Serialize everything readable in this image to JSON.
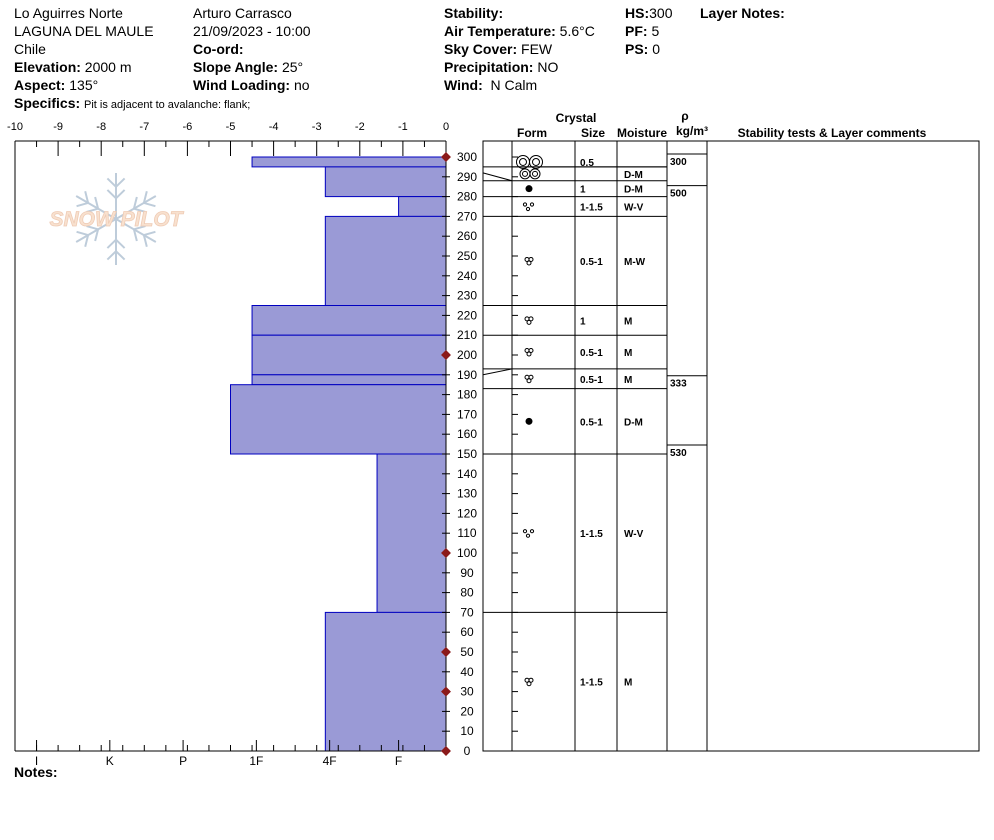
{
  "header": {
    "location": "Lo Aguirres Norte",
    "region": "LAGUNA DEL MAULE",
    "country": "Chile",
    "elevation_label": "Elevation:",
    "elevation": "2000 m",
    "aspect_label": "Aspect:",
    "aspect": "135°",
    "specifics_label": "Specifics:",
    "specifics": "Pit is adjacent to avalanche: flank;",
    "observer": "Arturo Carrasco",
    "datetime": "21/09/2023 - 10:00",
    "coord_label": "Co-ord:",
    "slope_label": "Slope Angle:",
    "slope": "25°",
    "wind_loading_label": "Wind Loading:",
    "wind_loading": "no",
    "stability_label": "Stability:",
    "air_temp_label": "Air Temperature:",
    "air_temp": "5.6°C",
    "sky_label": "Sky Cover:",
    "sky": "FEW",
    "precip_label": "Precipitation:",
    "precip": "NO",
    "wind_label": "Wind:",
    "wind": "N Calm",
    "hs_label": "HS:",
    "hs": "300",
    "pf_label": "PF:",
    "pf": "5",
    "ps_label": "PS:",
    "ps": "0",
    "layer_notes_label": "Layer Notes:"
  },
  "notes_label": "Notes:",
  "logo_text": "SNOW PILOT",
  "colors": {
    "bar_fill": "#9a9ad6",
    "bar_edge": "#0000c0",
    "marker": "#8b1a1a"
  },
  "chart_data": {
    "type": "bar",
    "title": "",
    "x_top_ticks": [
      "-10",
      "-9",
      "-8",
      "-7",
      "-6",
      "-5",
      "-4",
      "-3",
      "-2",
      "-1",
      "0"
    ],
    "x_bottom_labels": [
      "I",
      "K",
      "P",
      "1F",
      "4F",
      "F"
    ],
    "y_ticks": [
      "0",
      "10",
      "20",
      "30",
      "40",
      "50",
      "60",
      "70",
      "80",
      "90",
      "100",
      "110",
      "120",
      "130",
      "140",
      "150",
      "160",
      "170",
      "180",
      "190",
      "200",
      "210",
      "220",
      "230",
      "240",
      "250",
      "260",
      "270",
      "280",
      "290",
      "300"
    ],
    "ylim": [
      0,
      300
    ],
    "hardness_profile": [
      {
        "top": 300,
        "bottom": 295,
        "value": -4.5
      },
      {
        "top": 295,
        "bottom": 280,
        "value": -2.8
      },
      {
        "top": 280,
        "bottom": 270,
        "value": -1.1
      },
      {
        "top": 270,
        "bottom": 225,
        "value": -2.8
      },
      {
        "top": 225,
        "bottom": 210,
        "value": -4.5
      },
      {
        "top": 210,
        "bottom": 190,
        "value": -4.5
      },
      {
        "top": 190,
        "bottom": 185,
        "value": -4.5
      },
      {
        "top": 185,
        "bottom": 150,
        "value": -5.0
      },
      {
        "top": 150,
        "bottom": 70,
        "value": -1.6
      },
      {
        "top": 70,
        "bottom": 0,
        "value": -2.8
      }
    ],
    "markers": [
      300,
      200,
      100,
      50,
      30,
      0
    ],
    "table_headers": {
      "crystal": "Crystal",
      "form": "Form",
      "size": "Size",
      "moisture": "Moisture",
      "rho": "ρ",
      "rho_unit": "kg/m³",
      "comments": "Stability tests & Layer comments"
    },
    "layers": [
      {
        "top": 300,
        "bottom": 295,
        "form": "rounded",
        "size": "0.5",
        "moisture": ""
      },
      {
        "top": 295,
        "bottom": 288,
        "form": "rounded-small",
        "size": "",
        "moisture": "D-M"
      },
      {
        "top": 288,
        "bottom": 280,
        "form": "graupel",
        "size": "1",
        "moisture": "D-M"
      },
      {
        "top": 280,
        "bottom": 270,
        "form": "melt",
        "size": "1-1.5",
        "moisture": "W-V"
      },
      {
        "top": 270,
        "bottom": 225,
        "form": "melt-cluster",
        "size": "0.5-1",
        "moisture": "M-W"
      },
      {
        "top": 225,
        "bottom": 210,
        "form": "melt-cluster",
        "size": "1",
        "moisture": "M"
      },
      {
        "top": 210,
        "bottom": 193,
        "form": "melt-cluster",
        "size": "0.5-1",
        "moisture": "M"
      },
      {
        "top": 193,
        "bottom": 183,
        "form": "melt-cluster",
        "size": "0.5-1",
        "moisture": "M"
      },
      {
        "top": 183,
        "bottom": 150,
        "form": "graupel",
        "size": "0.5-1",
        "moisture": "D-M"
      },
      {
        "top": 150,
        "bottom": 70,
        "form": "melt",
        "size": "1-1.5",
        "moisture": "W-V"
      },
      {
        "top": 70,
        "bottom": 0,
        "form": "melt-cluster",
        "size": "1-1.5",
        "moisture": "M"
      }
    ],
    "densities": [
      {
        "height": 297,
        "value": "300"
      },
      {
        "height": 281,
        "value": "500"
      },
      {
        "height": 185,
        "value": "333"
      },
      {
        "height": 150,
        "value": "530"
      }
    ]
  }
}
